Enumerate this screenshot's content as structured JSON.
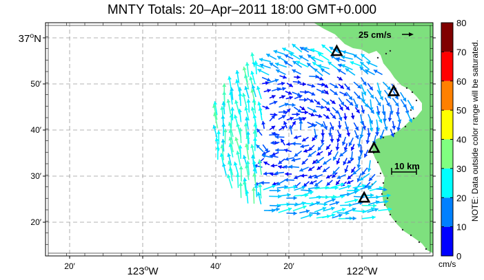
{
  "map": {
    "title": "MNTY Totals: 20–Apr–2011 18:00 GMT+0.000",
    "colors": {
      "land": "#7ee07e",
      "frame": "#000000",
      "grid": "#9a9a9a",
      "site": "#000000",
      "coast_fleck": "#2a2a2a"
    },
    "lat_labels": [
      {
        "deg": "37",
        "sup": "o",
        "tail": "N",
        "lat": 37.0
      },
      {
        "text": "50′",
        "lat": 36.8333
      },
      {
        "text": "40′",
        "lat": 36.6667
      },
      {
        "text": "30′",
        "lat": 36.5
      },
      {
        "text": "20′",
        "lat": 36.3333
      }
    ],
    "lon_labels": [
      {
        "text": "20′",
        "lon": -123.3333
      },
      {
        "deg": "123",
        "sup": "o",
        "tail": "W",
        "lon": -123.0
      },
      {
        "text": "40′",
        "lon": -122.6667
      },
      {
        "text": "20′",
        "lon": -122.3333
      },
      {
        "deg": "122",
        "sup": "o",
        "tail": "W",
        "lon": -122.0
      }
    ],
    "scale_vector": {
      "label": "25 cm/s",
      "speed_cm_s": 25
    },
    "scale_bar": {
      "label": "10 km",
      "km": 10
    },
    "hf_radar_sites": [
      {
        "lon": -122.115,
        "lat": 36.95
      },
      {
        "lon": -121.855,
        "lat": 36.805
      },
      {
        "lon": -121.945,
        "lat": 36.6
      },
      {
        "lon": -121.99,
        "lat": 36.42
      }
    ]
  },
  "colorbar": {
    "ticks": [
      "0",
      "10",
      "20",
      "30",
      "40",
      "50",
      "60",
      "70",
      "80"
    ],
    "unit": "cm/s",
    "min": 0,
    "max": 80,
    "stops": [
      "#0000ff",
      "#0080ff",
      "#00ffff",
      "#80ff80",
      "#ffff00",
      "#ff8000",
      "#ff0000",
      "#800000"
    ],
    "note": "NOTE: Data outside color range will be saturated."
  }
}
